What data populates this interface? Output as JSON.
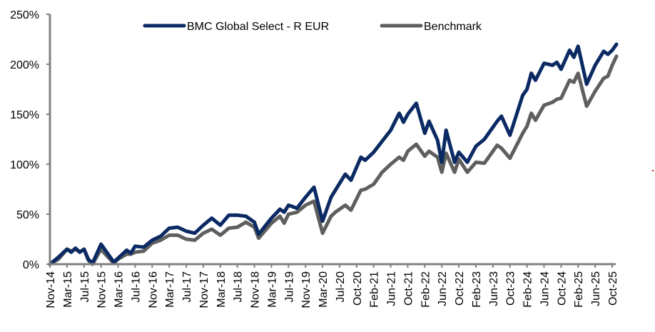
{
  "chart_data": {
    "type": "line",
    "title": "",
    "xlabel": "",
    "ylabel": "",
    "ylim": [
      0,
      250
    ],
    "y_ticks": [
      "0%",
      "50%",
      "100%",
      "150%",
      "200%",
      "250%"
    ],
    "y_tick_values": [
      0,
      50,
      100,
      150,
      200,
      250
    ],
    "grid": false,
    "legend_position": "top",
    "x_ticks": [
      {
        "label": "Nov-14",
        "date": "2014-11"
      },
      {
        "label": "Mar-15",
        "date": "2015-03"
      },
      {
        "label": "Jul-15",
        "date": "2015-07"
      },
      {
        "label": "Nov-15",
        "date": "2015-11"
      },
      {
        "label": "Mar-16",
        "date": "2016-03"
      },
      {
        "label": "Jul-16",
        "date": "2016-07"
      },
      {
        "label": "Nov-16",
        "date": "2016-11"
      },
      {
        "label": "Mar-17",
        "date": "2017-03"
      },
      {
        "label": "Jul-17",
        "date": "2017-07"
      },
      {
        "label": "Nov-17",
        "date": "2017-11"
      },
      {
        "label": "Mar-18",
        "date": "2018-03"
      },
      {
        "label": "Jul-18",
        "date": "2018-07"
      },
      {
        "label": "Nov-18",
        "date": "2018-11"
      },
      {
        "label": "Mar-19",
        "date": "2019-03"
      },
      {
        "label": "Jul-19",
        "date": "2019-07"
      },
      {
        "label": "Nov-19",
        "date": "2019-11"
      },
      {
        "label": "Mar-20",
        "date": "2020-03"
      },
      {
        "label": "Jul-20",
        "date": "2020-07"
      },
      {
        "label": "Oct-20",
        "date": "2020-10"
      },
      {
        "label": "Feb-21",
        "date": "2021-02"
      },
      {
        "label": "Jun-21",
        "date": "2021-06"
      },
      {
        "label": "Oct-21",
        "date": "2021-10"
      },
      {
        "label": "Feb-22",
        "date": "2022-02"
      },
      {
        "label": "Jun-22",
        "date": "2022-06"
      },
      {
        "label": "Oct-22",
        "date": "2022-10"
      },
      {
        "label": "Feb-23",
        "date": "2023-02"
      },
      {
        "label": "Jun-23",
        "date": "2023-06"
      },
      {
        "label": "Oct-23",
        "date": "2023-10"
      },
      {
        "label": "Feb-24",
        "date": "2024-02"
      },
      {
        "label": "Jun-24",
        "date": "2024-06"
      },
      {
        "label": "Oct-24",
        "date": "2024-10"
      },
      {
        "label": "Feb-25",
        "date": "2025-02"
      },
      {
        "label": "Jun-25",
        "date": "2025-06"
      },
      {
        "label": "Oct-25",
        "date": "2025-10"
      }
    ],
    "x": [
      "2014-11",
      "2015-01",
      "2015-03",
      "2015-04",
      "2015-05",
      "2015-06",
      "2015-07",
      "2015-08",
      "2015-09",
      "2015-11",
      "2015-12",
      "2016-02",
      "2016-03",
      "2016-05",
      "2016-06",
      "2016-07",
      "2016-09",
      "2016-11",
      "2017-01",
      "2017-03",
      "2017-05",
      "2017-07",
      "2017-09",
      "2017-11",
      "2018-01",
      "2018-03",
      "2018-05",
      "2018-07",
      "2018-09",
      "2018-11",
      "2018-12",
      "2019-03",
      "2019-05",
      "2019-06",
      "2019-07",
      "2019-09",
      "2019-11",
      "2020-01",
      "2020-03",
      "2020-05",
      "2020-06",
      "2020-08",
      "2020-09",
      "2020-11",
      "2020-12",
      "2021-02",
      "2021-04",
      "2021-06",
      "2021-08",
      "2021-09",
      "2021-10",
      "2021-12",
      "2022-02",
      "2022-03",
      "2022-05",
      "2022-06",
      "2022-07",
      "2022-09",
      "2022-10",
      "2022-12",
      "2023-02",
      "2023-04",
      "2023-07",
      "2023-08",
      "2023-10",
      "2024-01",
      "2024-02",
      "2024-03",
      "2024-04",
      "2024-06",
      "2024-08",
      "2024-09",
      "2024-10",
      "2024-12",
      "2025-01",
      "2025-02",
      "2025-04",
      "2025-06",
      "2025-08",
      "2025-09",
      "2025-10",
      "2025-11"
    ],
    "series": [
      {
        "name": "BMC Global Select - R EUR",
        "color": "#0b2a63",
        "values": [
          0,
          7,
          15,
          12,
          16,
          12,
          15,
          5,
          1,
          20,
          14,
          2,
          6,
          14,
          11,
          18,
          17,
          24,
          28,
          36,
          37,
          33,
          31,
          39,
          46,
          39,
          49,
          49,
          48,
          42,
          30,
          46,
          55,
          52,
          59,
          56,
          67,
          77,
          43,
          67,
          74,
          90,
          84,
          107,
          104,
          112,
          123,
          134,
          151,
          142,
          150,
          161,
          131,
          143,
          124,
          102,
          134,
          102,
          112,
          102,
          118,
          125,
          143,
          148,
          129,
          169,
          175,
          191,
          184,
          201,
          199,
          202,
          195,
          214,
          207,
          218,
          180,
          199,
          213,
          210,
          214,
          220
        ]
      },
      {
        "name": "Benchmark",
        "color": "#5f5f5f",
        "values": [
          0,
          5,
          15,
          13,
          15,
          12,
          15,
          4,
          0,
          15,
          10,
          1,
          5,
          10,
          10,
          12,
          13,
          21,
          24,
          29,
          29,
          25,
          24,
          31,
          35,
          29,
          36,
          37,
          42,
          37,
          26,
          41,
          48,
          41,
          50,
          52,
          59,
          63,
          31,
          48,
          52,
          59,
          54,
          74,
          75,
          80,
          92,
          100,
          107,
          104,
          113,
          120,
          108,
          113,
          107,
          92,
          111,
          92,
          105,
          92,
          102,
          101,
          119,
          116,
          106,
          131,
          138,
          151,
          144,
          159,
          162,
          165,
          166,
          184,
          182,
          191,
          158,
          173,
          186,
          188,
          199,
          208
        ]
      }
    ]
  },
  "annotations": {
    "stray_mark_color": "#d02020"
  }
}
